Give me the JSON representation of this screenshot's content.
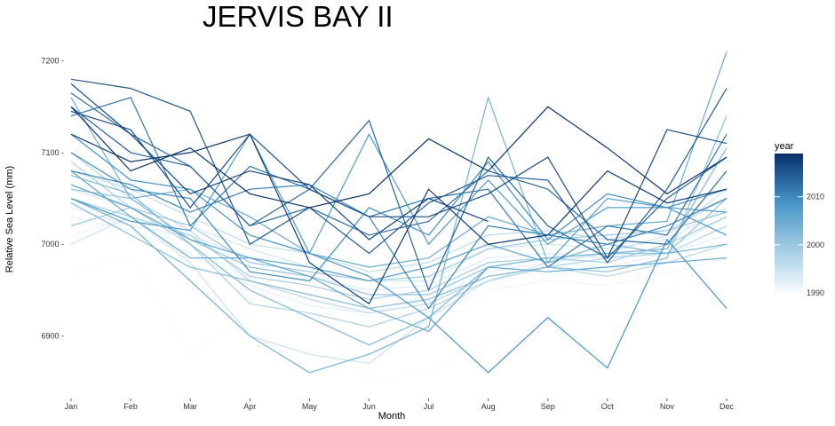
{
  "chart_data": {
    "type": "line",
    "title": "JERVIS BAY II",
    "xlabel": "Month",
    "ylabel": "Relative Sea Level (mm)",
    "categories": [
      "Jan",
      "Feb",
      "Mar",
      "Apr",
      "May",
      "Jun",
      "Jul",
      "Aug",
      "Sep",
      "Oct",
      "Nov",
      "Dec"
    ],
    "y_ticks": [
      6900,
      7000,
      7100,
      7200
    ],
    "y_tick_labels": [
      "6900 -",
      "7000 -",
      "7100 -",
      "7200 -"
    ],
    "ylim": [
      6840,
      7212
    ],
    "grid": false,
    "legend": {
      "title": "year",
      "placement": "right",
      "type": "colorbar",
      "range": [
        1990,
        2019
      ],
      "ticks": [
        1990,
        2000,
        2010
      ],
      "tick_labels": [
        "1990",
        "2000",
        "2010"
      ],
      "colors": [
        "#f7fbff",
        "#9ecae1",
        "#4292c6",
        "#08306b"
      ]
    },
    "series": [
      {
        "year": 1990,
        "values": [
          6970,
          6988,
          6880,
          6925,
          6935,
          6850,
          6862,
          6893,
          6920,
          6932,
          6945,
          7020
        ]
      },
      {
        "year": 1991,
        "values": [
          7010,
          7030,
          7000,
          6960,
          6940,
          6920,
          6925,
          6950,
          6960,
          6955,
          6968,
          6985
        ]
      },
      {
        "year": 1992,
        "values": [
          7030,
          7015,
          6990,
          6955,
          6933,
          6925,
          6940,
          6970,
          6980,
          6975,
          6990,
          7010
        ]
      },
      {
        "year": 1993,
        "values": [
          7040,
          7020,
          7010,
          6985,
          6965,
          6950,
          6955,
          6985,
          6990,
          6985,
          6995,
          7030
        ]
      },
      {
        "year": 1994,
        "values": [
          7060,
          7040,
          7020,
          6995,
          6975,
          6960,
          6960,
          6995,
          7000,
          6995,
          7005,
          7040
        ]
      },
      {
        "year": 1995,
        "values": [
          7000,
          7030,
          6980,
          6900,
          6880,
          6870,
          6920,
          6960,
          6980,
          6990,
          7010,
          7060
        ]
      },
      {
        "year": 1996,
        "values": [
          7080,
          7060,
          7030,
          7000,
          6990,
          6970,
          6980,
          7010,
          7015,
          7005,
          7015,
          7050
        ]
      },
      {
        "year": 1997,
        "values": [
          7100,
          7050,
          7015,
          6960,
          6940,
          6925,
          6935,
          6965,
          6975,
          6965,
          6980,
          7000
        ]
      },
      {
        "year": 1998,
        "values": [
          7090,
          7040,
          7000,
          6935,
          6925,
          6910,
          6930,
          6960,
          6975,
          6985,
          6990,
          7020
        ]
      },
      {
        "year": 1999,
        "values": [
          7050,
          7030,
          7010,
          6965,
          6955,
          6940,
          6950,
          6980,
          6985,
          6980,
          7000,
          7030
        ]
      },
      {
        "year": 2000,
        "values": [
          7020,
          7040,
          7020,
          6980,
          6970,
          6960,
          6965,
          6995,
          7005,
          7010,
          7015,
          7035
        ]
      },
      {
        "year": 2001,
        "values": [
          7060,
          7050,
          7005,
          6975,
          6965,
          6945,
          6945,
          6975,
          6985,
          6990,
          6990,
          7050
        ]
      },
      {
        "year": 2002,
        "values": [
          7045,
          7010,
          6975,
          6960,
          6945,
          6930,
          6940,
          6965,
          6975,
          6970,
          6985,
          7140
        ]
      },
      {
        "year": 2003,
        "values": [
          7075,
          7055,
          7000,
          6950,
          6920,
          6890,
          6920,
          6975,
          6985,
          6990,
          6995,
          7105
        ]
      },
      {
        "year": 2004,
        "values": [
          7050,
          7020,
          6960,
          6900,
          6860,
          6880,
          6910,
          7160,
          6980,
          7000,
          6990,
          7000
        ]
      },
      {
        "year": 2005,
        "values": [
          7160,
          7050,
          7060,
          7030,
          6990,
          6975,
          6985,
          7030,
          7010,
          7020,
          7025,
          7210
        ]
      },
      {
        "year": 2006,
        "values": [
          7080,
          7030,
          6985,
          6985,
          6965,
          6930,
          6905,
          6975,
          6970,
          6975,
          6980,
          6985
        ]
      },
      {
        "year": 2007,
        "values": [
          7065,
          7040,
          7005,
          6985,
          6975,
          6960,
          6975,
          7000,
          6980,
          7050,
          7040,
          7035
        ]
      },
      {
        "year": 2008,
        "values": [
          7050,
          7025,
          7015,
          7120,
          6990,
          7120,
          7000,
          7070,
          7000,
          7040,
          7040,
          7010
        ]
      },
      {
        "year": 2009,
        "values": [
          7120,
          7070,
          7060,
          7010,
          6990,
          6965,
          6920,
          6860,
          6920,
          6865,
          7005,
          6930
        ]
      },
      {
        "year": 2010,
        "values": [
          7100,
          7060,
          7050,
          6970,
          6960,
          7040,
          7010,
          7090,
          7005,
          7055,
          7040,
          7060
        ]
      },
      {
        "year": 2011,
        "values": [
          7080,
          7065,
          7035,
          7060,
          7065,
          7030,
          6930,
          7020,
          7010,
          7000,
          7020,
          7050
        ]
      },
      {
        "year": 2012,
        "values": [
          7140,
          7160,
          7020,
          7085,
          7060,
          7030,
          7050,
          7060,
          6975,
          7020,
          7010,
          7120
        ]
      },
      {
        "year": 2013,
        "values": [
          7165,
          7120,
          7085,
          7020,
          7040,
          7010,
          7025,
          7080,
          7060,
          7005,
          7000,
          7080
        ]
      },
      {
        "year": 2014,
        "values": [
          7150,
          7100,
          7085,
          7020,
          7060,
          7135,
          6950,
          7095,
          7020,
          6985,
          7050,
          7095
        ]
      },
      {
        "year": 2015,
        "values": [
          7180,
          7170,
          7145,
          7000,
          7040,
          6990,
          7045,
          7075,
          7070,
          6980,
          7060,
          7170
        ]
      },
      {
        "year": 2016,
        "values": [
          7145,
          7125,
          7040,
          7120,
          7060,
          7030,
          7030,
          7055,
          7095,
          6985,
          7125,
          7110
        ]
      },
      {
        "year": 2017,
        "values": [
          7175,
          7120,
          7055,
          7080,
          7065,
          7005,
          7050,
          7025,
          null,
          null,
          null,
          null
        ]
      },
      {
        "year": 2018,
        "values": [
          7120,
          7090,
          7100,
          7120,
          6980,
          6935,
          7060,
          7000,
          7010,
          7080,
          7045,
          7060
        ]
      },
      {
        "year": 2019,
        "values": [
          7150,
          7080,
          7105,
          7055,
          7040,
          7055,
          7115,
          7080,
          7150,
          7105,
          7055,
          7095
        ]
      }
    ]
  }
}
